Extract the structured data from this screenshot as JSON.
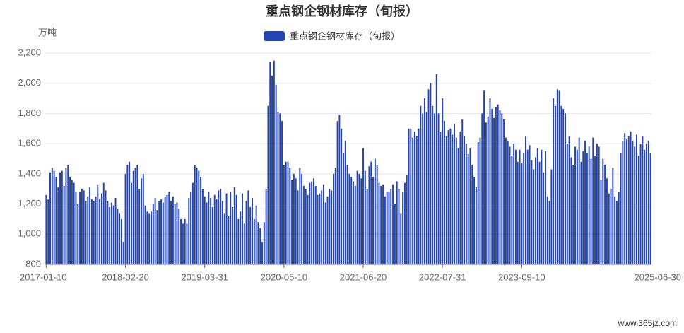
{
  "chart_data": {
    "type": "bar",
    "title": "重点钢企钢材库存（旬报）",
    "y_label": "万吨",
    "watermark": "www.365jz.com",
    "series": [
      {
        "name": "重点钢企钢材库存（旬报）",
        "color": "#2445b0",
        "values": [
          1260,
          1230,
          1410,
          1440,
          1420,
          1380,
          1310,
          1410,
          1420,
          1320,
          1440,
          1460,
          1380,
          1360,
          1340,
          1280,
          1200,
          1280,
          1300,
          1290,
          1220,
          1250,
          1310,
          1230,
          1220,
          1250,
          1330,
          1230,
          1270,
          1340,
          1290,
          1220,
          1180,
          1210,
          1190,
          1240,
          1170,
          1140,
          1100,
          950,
          1400,
          1460,
          1480,
          1340,
          1420,
          1440,
          1460,
          1300,
          1370,
          1400,
          1190,
          1150,
          1140,
          1150,
          1200,
          1240,
          1160,
          1220,
          1230,
          1210,
          1250,
          1260,
          1280,
          1220,
          1250,
          1200,
          1210,
          1170,
          1100,
          1070,
          1100,
          1070,
          1240,
          1280,
          1340,
          1460,
          1440,
          1420,
          1380,
          1300,
          1250,
          1210,
          1280,
          1240,
          1180,
          1260,
          1230,
          1290,
          1300,
          1220,
          1140,
          1270,
          1120,
          1280,
          1180,
          1310,
          1260,
          1100,
          1150,
          1270,
          1070,
          1220,
          1290,
          1180,
          1240,
          1100,
          1190,
          1080,
          1040,
          950,
          1080,
          1300,
          1850,
          2140,
          2050,
          2150,
          1990,
          1810,
          1800,
          1750,
          1460,
          1480,
          1480,
          1440,
          1360,
          1400,
          1370,
          1290,
          1440,
          1400,
          1320,
          1300,
          1260,
          1340,
          1350,
          1370,
          1320,
          1260,
          1270,
          1290,
          1330,
          1210,
          1250,
          1300,
          1290,
          1400,
          1440,
          1750,
          1790,
          1700,
          1540,
          1620,
          1460,
          1400,
          1380,
          1350,
          1320,
          1420,
          1400,
          1370,
          1570,
          1420,
          1300,
          1450,
          1480,
          1380,
          1500,
          1460,
          1340,
          1320,
          1330,
          1250,
          1280,
          1280,
          1300,
          1330,
          1200,
          1350,
          1300,
          1140,
          1280,
          1340,
          1390,
          1700,
          1700,
          1640,
          1680,
          1650,
          1700,
          1850,
          1800,
          1900,
          1810,
          1960,
          2000,
          1850,
          1800,
          2060,
          1800,
          1680,
          1900,
          1750,
          1650,
          1690,
          1700,
          1660,
          1730,
          1640,
          1570,
          1680,
          1760,
          1650,
          1600,
          1530,
          1570,
          1460,
          1380,
          1310,
          1610,
          1640,
          1800,
          1950,
          1740,
          1780,
          1900,
          1830,
          1770,
          1840,
          1860,
          1820,
          1800,
          1760,
          1640,
          1620,
          1580,
          1520,
          1600,
          1560,
          1480,
          1560,
          1470,
          1540,
          1650,
          1560,
          1590,
          1490,
          1430,
          1510,
          1570,
          1480,
          1560,
          1410,
          1550,
          1250,
          1220,
          1430,
          1900,
          1850,
          1960,
          1950,
          1850,
          1830,
          1800,
          1600,
          1650,
          1510,
          1460,
          1580,
          1560,
          1640,
          1480,
          1550,
          1620,
          1540,
          1580,
          1500,
          1640,
          1520,
          1600,
          1580,
          1360,
          1500,
          1460,
          1370,
          1270,
          1300,
          1440,
          1250,
          1220,
          1280,
          1540,
          1620,
          1670,
          1630,
          1650,
          1680,
          1620,
          1580,
          1660,
          1520,
          1600,
          1650,
          1560,
          1600,
          1620,
          1540
        ]
      }
    ],
    "categories": [
      "2017-01-10",
      null,
      null,
      null,
      null,
      null,
      null,
      null,
      null,
      null,
      null,
      null,
      null,
      null,
      null,
      null,
      null,
      null,
      null,
      null,
      null,
      null,
      null,
      null,
      null,
      null,
      null,
      null,
      null,
      null,
      null,
      null,
      null,
      null,
      null,
      null,
      null,
      null,
      null,
      null,
      "2018-02-20",
      null,
      null,
      null,
      null,
      null,
      null,
      null,
      null,
      null,
      null,
      null,
      null,
      null,
      null,
      null,
      null,
      null,
      null,
      null,
      null,
      null,
      null,
      null,
      null,
      null,
      null,
      null,
      null,
      null,
      null,
      null,
      null,
      null,
      null,
      null,
      null,
      null,
      null,
      null,
      "2019-03-31",
      null,
      null,
      null,
      null,
      null,
      null,
      null,
      null,
      null,
      null,
      null,
      null,
      null,
      null,
      null,
      null,
      null,
      null,
      null,
      null,
      null,
      null,
      null,
      null,
      null,
      null,
      null,
      null,
      null,
      null,
      null,
      null,
      null,
      null,
      null,
      null,
      null,
      null,
      null,
      "2020-05-10",
      null,
      null,
      null,
      null,
      null,
      null,
      null,
      null,
      null,
      null,
      null,
      null,
      null,
      null,
      null,
      null,
      null,
      null,
      null,
      null,
      null,
      null,
      null,
      null,
      null,
      null,
      null,
      null,
      null,
      null,
      null,
      null,
      null,
      null,
      null,
      null,
      null,
      null,
      null,
      "2021-06-20",
      null,
      null,
      null,
      null,
      null,
      null,
      null,
      null,
      null,
      null,
      null,
      null,
      null,
      null,
      null,
      null,
      null,
      null,
      null,
      null,
      null,
      null,
      null,
      null,
      null,
      null,
      null,
      null,
      null,
      null,
      null,
      null,
      null,
      null,
      null,
      null,
      null,
      null,
      null,
      "2022-07-31",
      null,
      null,
      null,
      null,
      null,
      null,
      null,
      null,
      null,
      null,
      null,
      null,
      null,
      null,
      null,
      null,
      null,
      null,
      null,
      null,
      null,
      null,
      null,
      null,
      null,
      null,
      null,
      null,
      null,
      null,
      null,
      null,
      null,
      null,
      null,
      null,
      null,
      null,
      null,
      "2023-09-10",
      null,
      null,
      null,
      null,
      null,
      null,
      null,
      null,
      null,
      null,
      null,
      null,
      null,
      null,
      null,
      null,
      null,
      null,
      null,
      null,
      null,
      null,
      null,
      null,
      null,
      null,
      null,
      null,
      null,
      null,
      null,
      null,
      null,
      null,
      null,
      null,
      null,
      null,
      null,
      null,
      null,
      null,
      null,
      null,
      null,
      null,
      null,
      null,
      null,
      null,
      null,
      null,
      null,
      null,
      null,
      null,
      null,
      null,
      null,
      null,
      null,
      null,
      null,
      null,
      "2025-06-30"
    ],
    "ylim": [
      800,
      2200
    ],
    "yticks": [
      800,
      {
        "value": 1000,
        "label": "1,000"
      },
      {
        "value": 1200,
        "label": "1,200"
      },
      {
        "value": 1400,
        "label": "1,400"
      },
      {
        "value": 1600,
        "label": "1,600"
      },
      {
        "value": 1800,
        "label": "1,800"
      },
      {
        "value": 2000,
        "label": "2,000"
      },
      {
        "value": 2200,
        "label": "2,200"
      }
    ],
    "grid": true
  }
}
